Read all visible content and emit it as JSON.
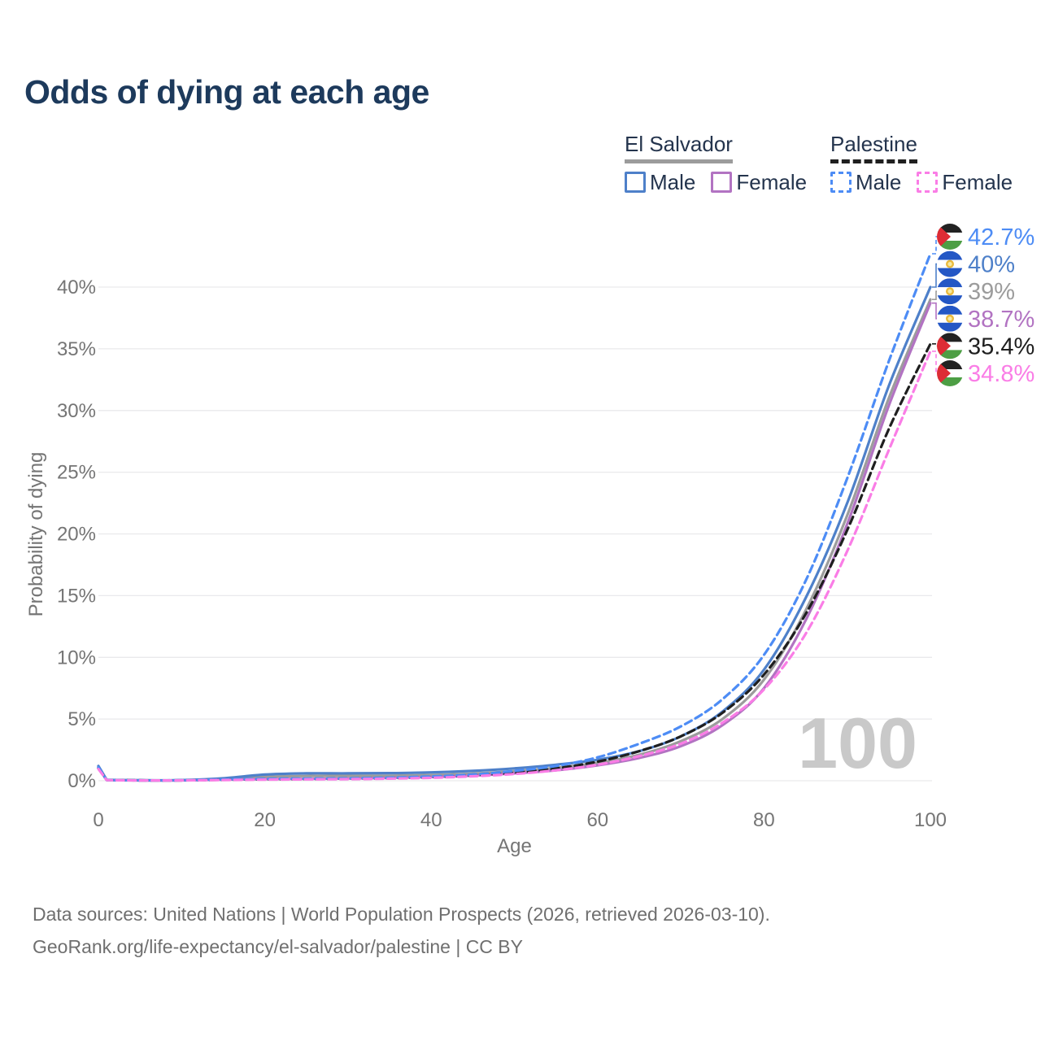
{
  "title": "Odds of dying at each age",
  "legend": {
    "groups": [
      {
        "label": "El Salvador",
        "line_color": "#9c9c9c",
        "line_style": "solid",
        "items": [
          {
            "label": "Male",
            "color": "#4e80c9",
            "style": "solid"
          },
          {
            "label": "Female",
            "color": "#b273c2",
            "style": "solid"
          }
        ]
      },
      {
        "label": "Palestine",
        "line_color": "#1f1f1f",
        "line_style": "dashed",
        "items": [
          {
            "label": "Male",
            "color": "#4d8cf5",
            "style": "dashed"
          },
          {
            "label": "Female",
            "color": "#fa7de6",
            "style": "dashed"
          }
        ]
      }
    ]
  },
  "chart_data": {
    "type": "line",
    "title": "Odds of dying at each age",
    "xlabel": "Age",
    "ylabel": "Probability of dying",
    "xlim": [
      0,
      100
    ],
    "ylim": [
      0,
      44
    ],
    "x_ticks": [
      0,
      20,
      40,
      60,
      80,
      100
    ],
    "y_ticks_percent": [
      0,
      5,
      10,
      15,
      20,
      25,
      30,
      35,
      40
    ],
    "grid": "horizontal",
    "legend_position": "top-right",
    "watermark": "100",
    "x": [
      0,
      1,
      5,
      10,
      15,
      20,
      25,
      30,
      35,
      40,
      45,
      50,
      55,
      60,
      65,
      70,
      75,
      80,
      85,
      90,
      95,
      100
    ],
    "series": [
      {
        "name": "Palestine Male",
        "country": "Palestine",
        "sex": "male",
        "color": "#4d8cf5",
        "dashed": true,
        "flag": "palestine",
        "end_label": "42.7%",
        "values": [
          1.1,
          0.06,
          0.03,
          0.04,
          0.1,
          0.16,
          0.18,
          0.2,
          0.25,
          0.35,
          0.5,
          0.8,
          1.2,
          1.9,
          3.0,
          4.4,
          6.6,
          10.2,
          16.2,
          24.5,
          34,
          42.7
        ]
      },
      {
        "name": "El Salvador Male",
        "country": "El Salvador",
        "sex": "male",
        "color": "#4e80c9",
        "dashed": false,
        "flag": "el-salvador",
        "end_label": "40%",
        "values": [
          1.2,
          0.07,
          0.04,
          0.05,
          0.2,
          0.5,
          0.6,
          0.6,
          0.62,
          0.68,
          0.8,
          1.0,
          1.3,
          1.7,
          2.4,
          3.6,
          5.6,
          9.0,
          14.8,
          22.5,
          32,
          40
        ]
      },
      {
        "name": "El Salvador Both",
        "country": "El Salvador",
        "sex": "all",
        "color": "#9c9c9c",
        "dashed": false,
        "flag": "el-salvador",
        "end_label": "39%",
        "values": [
          1.15,
          0.065,
          0.035,
          0.045,
          0.14,
          0.32,
          0.38,
          0.39,
          0.41,
          0.47,
          0.58,
          0.78,
          1.05,
          1.45,
          2.1,
          3.2,
          5.0,
          8.2,
          13.8,
          21.5,
          31,
          39
        ]
      },
      {
        "name": "El Salvador Female",
        "country": "El Salvador",
        "sex": "female",
        "color": "#b273c2",
        "dashed": false,
        "flag": "el-salvador",
        "end_label": "38.7%",
        "values": [
          1.0,
          0.06,
          0.03,
          0.035,
          0.09,
          0.13,
          0.15,
          0.18,
          0.23,
          0.3,
          0.42,
          0.6,
          0.85,
          1.25,
          1.85,
          2.8,
          4.5,
          7.5,
          13.0,
          20.8,
          30.4,
          38.7
        ]
      },
      {
        "name": "Palestine Both",
        "country": "Palestine",
        "sex": "all",
        "color": "#1f1f1f",
        "dashed": true,
        "flag": "palestine",
        "end_label": "35.4%",
        "values": [
          1.05,
          0.06,
          0.03,
          0.035,
          0.08,
          0.12,
          0.14,
          0.17,
          0.21,
          0.29,
          0.43,
          0.65,
          1.0,
          1.55,
          2.4,
          3.6,
          5.5,
          8.6,
          13.5,
          20.3,
          28.5,
          35.4
        ]
      },
      {
        "name": "Palestine Female",
        "country": "Palestine",
        "sex": "female",
        "color": "#fa7de6",
        "dashed": true,
        "flag": "palestine",
        "end_label": "34.8%",
        "values": [
          0.95,
          0.055,
          0.028,
          0.03,
          0.06,
          0.09,
          0.11,
          0.13,
          0.17,
          0.24,
          0.36,
          0.55,
          0.85,
          1.3,
          2.0,
          3.0,
          4.7,
          7.4,
          11.9,
          18.6,
          26.8,
          34.8
        ]
      }
    ]
  },
  "footer": {
    "line1": "Data sources: United Nations | World Population Prospects (2026, retrieved 2026-03-10).",
    "line2": "GeoRank.org/life-expectancy/el-salvador/palestine | CC BY"
  }
}
